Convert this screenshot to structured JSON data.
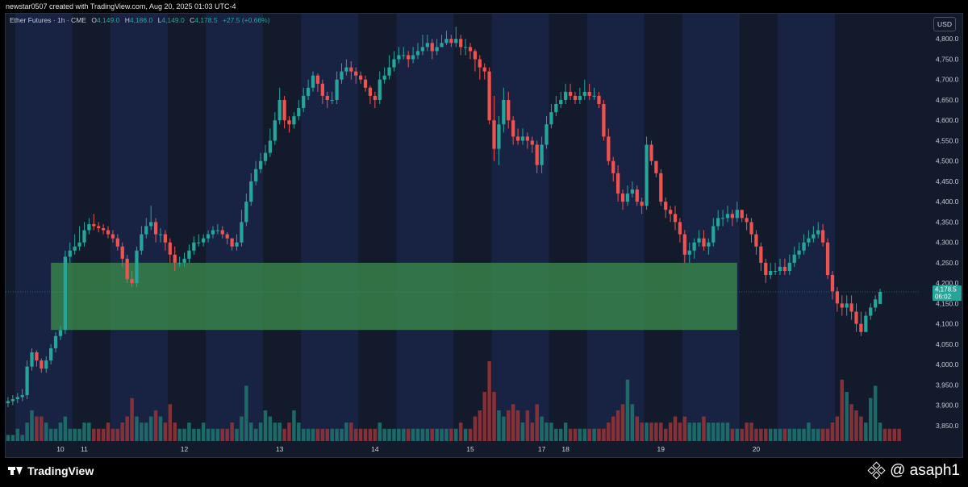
{
  "header": {
    "credit": "newstar0507 created with TradingView.com, Aug 20, 2025 01:03 UTC-4"
  },
  "legend": {
    "symbol": "Ether Futures · 1h · CME",
    "o_label": "O",
    "o": "4,149.0",
    "h_label": "H",
    "h": "4,186.0",
    "l_label": "L",
    "l": "4,149.0",
    "c_label": "C",
    "c": "4,178.5",
    "change": "+27.5 (+0.66%)"
  },
  "currency": "USD",
  "price_tag": {
    "value": "4,178.5",
    "countdown": "06:02"
  },
  "footer": {
    "brand": "TradingView",
    "handle": "@ asaph1"
  },
  "colors": {
    "up": "#26a69a",
    "down": "#ef5350",
    "zone": "#3b8a4a",
    "panel": "#121a2b",
    "session": "#1a2547"
  },
  "chart_data": {
    "type": "candlestick",
    "title": "",
    "ylim": [
      3820,
      4850
    ],
    "y_ticks": [
      3850,
      3900,
      3950,
      4000,
      4050,
      4100,
      4150,
      4200,
      4250,
      4300,
      4350,
      4400,
      4450,
      4500,
      4550,
      4600,
      4650,
      4700,
      4750,
      4800
    ],
    "y_tick_labels": [
      "3,850.0",
      "3,900.0",
      "3,950.0",
      "4,000.0",
      "4,050.0",
      "4,100.0",
      "4,150.0",
      "4,200.0",
      "4,250.0",
      "4,300.0",
      "4,350.0",
      "4,400.0",
      "4,450.0",
      "4,500.0",
      "4,550.0",
      "4,600.0",
      "4,650.0",
      "4,700.0",
      "4,750.0",
      "4,800.0"
    ],
    "x_labels": [
      {
        "label": "10",
        "bar": 11
      },
      {
        "label": "11",
        "bar": 16
      },
      {
        "label": "12",
        "bar": 37
      },
      {
        "label": "13",
        "bar": 57
      },
      {
        "label": "14",
        "bar": 77
      },
      {
        "label": "15",
        "bar": 97
      },
      {
        "label": "17",
        "bar": 112
      },
      {
        "label": "18",
        "bar": 117
      },
      {
        "label": "19",
        "bar": 137
      },
      {
        "label": "20",
        "bar": 157
      }
    ],
    "zone": {
      "low": 4085,
      "high": 4250,
      "start_bar": 9,
      "end_bar": 153
    },
    "last_price": 4178.5,
    "closes": [
      3910,
      3915,
      3920,
      3925,
      3995,
      4030,
      4010,
      3990,
      4010,
      4040,
      4070,
      4085,
      4265,
      4280,
      4290,
      4300,
      4330,
      4345,
      4340,
      4335,
      4330,
      4320,
      4310,
      4290,
      4260,
      4210,
      4200,
      4280,
      4320,
      4340,
      4350,
      4320,
      4320,
      4300,
      4270,
      4250,
      4250,
      4260,
      4280,
      4300,
      4300,
      4310,
      4320,
      4330,
      4330,
      4320,
      4310,
      4290,
      4300,
      4350,
      4400,
      4450,
      4480,
      4500,
      4520,
      4550,
      4600,
      4650,
      4600,
      4590,
      4610,
      4630,
      4660,
      4680,
      4710,
      4690,
      4660,
      4650,
      4650,
      4700,
      4720,
      4730,
      4720,
      4710,
      4700,
      4680,
      4660,
      4650,
      4700,
      4710,
      4730,
      4750,
      4760,
      4760,
      4750,
      4760,
      4770,
      4780,
      4790,
      4770,
      4780,
      4790,
      4800,
      4790,
      4800,
      4780,
      4780,
      4770,
      4750,
      4730,
      4720,
      4600,
      4530,
      4590,
      4650,
      4600,
      4560,
      4550,
      4560,
      4550,
      4540,
      4490,
      4540,
      4590,
      4620,
      4640,
      4650,
      4670,
      4660,
      4650,
      4660,
      4670,
      4660,
      4660,
      4640,
      4560,
      4500,
      4470,
      4420,
      4400,
      4420,
      4430,
      4400,
      4390,
      4540,
      4500,
      4470,
      4400,
      4380,
      4370,
      4350,
      4320,
      4270,
      4280,
      4300,
      4310,
      4290,
      4300,
      4340,
      4360,
      4360,
      4370,
      4360,
      4380,
      4360,
      4350,
      4320,
      4290,
      4250,
      4220,
      4230,
      4230,
      4240,
      4230,
      4250,
      4270,
      4280,
      4300,
      4310,
      4320,
      4330,
      4300,
      4220,
      4180,
      4150,
      4140,
      4150,
      4130,
      4100,
      4080,
      4120,
      4140,
      4160,
      4178.5
    ],
    "opens": [
      3905,
      3910,
      3915,
      3920,
      3925,
      3995,
      4030,
      4010,
      3990,
      4010,
      4040,
      4070,
      4085,
      4265,
      4280,
      4290,
      4300,
      4330,
      4345,
      4340,
      4335,
      4330,
      4320,
      4310,
      4290,
      4260,
      4210,
      4200,
      4280,
      4320,
      4340,
      4350,
      4320,
      4320,
      4300,
      4270,
      4250,
      4250,
      4260,
      4280,
      4300,
      4300,
      4310,
      4320,
      4330,
      4330,
      4320,
      4310,
      4290,
      4300,
      4350,
      4400,
      4450,
      4480,
      4500,
      4520,
      4550,
      4600,
      4650,
      4600,
      4590,
      4610,
      4630,
      4660,
      4680,
      4710,
      4690,
      4660,
      4650,
      4650,
      4700,
      4720,
      4730,
      4720,
      4710,
      4700,
      4680,
      4660,
      4650,
      4700,
      4710,
      4730,
      4750,
      4760,
      4760,
      4750,
      4760,
      4770,
      4780,
      4790,
      4770,
      4780,
      4790,
      4800,
      4790,
      4800,
      4780,
      4780,
      4770,
      4750,
      4730,
      4720,
      4600,
      4530,
      4590,
      4650,
      4600,
      4560,
      4550,
      4560,
      4550,
      4540,
      4490,
      4540,
      4590,
      4620,
      4640,
      4650,
      4670,
      4660,
      4650,
      4660,
      4670,
      4660,
      4660,
      4640,
      4560,
      4500,
      4470,
      4420,
      4400,
      4420,
      4430,
      4400,
      4390,
      4540,
      4500,
      4470,
      4400,
      4380,
      4370,
      4350,
      4320,
      4270,
      4280,
      4300,
      4310,
      4290,
      4300,
      4340,
      4360,
      4360,
      4370,
      4360,
      4380,
      4360,
      4350,
      4320,
      4290,
      4250,
      4220,
      4230,
      4230,
      4240,
      4230,
      4250,
      4270,
      4280,
      4300,
      4310,
      4320,
      4330,
      4300,
      4220,
      4180,
      4150,
      4140,
      4150,
      4130,
      4100,
      4080,
      4120,
      4140,
      4149
    ],
    "highs": [
      3920,
      3925,
      3930,
      3940,
      4010,
      4040,
      4035,
      4015,
      4020,
      4050,
      4080,
      4095,
      4280,
      4300,
      4320,
      4340,
      4350,
      4360,
      4370,
      4350,
      4345,
      4340,
      4330,
      4320,
      4300,
      4270,
      4230,
      4290,
      4340,
      4360,
      4390,
      4360,
      4335,
      4330,
      4310,
      4290,
      4265,
      4275,
      4295,
      4315,
      4320,
      4320,
      4330,
      4340,
      4345,
      4340,
      4325,
      4310,
      4320,
      4380,
      4420,
      4470,
      4500,
      4520,
      4540,
      4580,
      4620,
      4680,
      4660,
      4610,
      4620,
      4650,
      4680,
      4700,
      4720,
      4715,
      4700,
      4670,
      4670,
      4720,
      4740,
      4750,
      4745,
      4730,
      4720,
      4710,
      4685,
      4670,
      4720,
      4730,
      4760,
      4770,
      4780,
      4780,
      4770,
      4780,
      4790,
      4810,
      4810,
      4800,
      4800,
      4810,
      4820,
      4810,
      4830,
      4810,
      4800,
      4790,
      4775,
      4760,
      4740,
      4730,
      4660,
      4610,
      4680,
      4670,
      4610,
      4580,
      4580,
      4570,
      4560,
      4550,
      4560,
      4610,
      4640,
      4660,
      4670,
      4690,
      4690,
      4670,
      4680,
      4700,
      4690,
      4680,
      4670,
      4650,
      4580,
      4510,
      4490,
      4430,
      4440,
      4450,
      4440,
      4410,
      4560,
      4550,
      4500,
      4480,
      4410,
      4390,
      4390,
      4360,
      4330,
      4300,
      4310,
      4330,
      4330,
      4310,
      4360,
      4380,
      4380,
      4390,
      4380,
      4400,
      4380,
      4370,
      4360,
      4330,
      4300,
      4260,
      4250,
      4250,
      4260,
      4260,
      4270,
      4290,
      4300,
      4320,
      4330,
      4340,
      4350,
      4345,
      4310,
      4230,
      4190,
      4170,
      4170,
      4170,
      4150,
      4130,
      4130,
      4150,
      4170,
      4186
    ],
    "lows": [
      3895,
      3900,
      3905,
      3910,
      3915,
      3985,
      3995,
      3980,
      3980,
      4000,
      4030,
      4060,
      4075,
      4250,
      4270,
      4280,
      4290,
      4320,
      4330,
      4325,
      4320,
      4310,
      4300,
      4280,
      4240,
      4200,
      4190,
      4190,
      4270,
      4310,
      4330,
      4300,
      4300,
      4280,
      4250,
      4230,
      4240,
      4240,
      4250,
      4270,
      4290,
      4290,
      4300,
      4310,
      4320,
      4310,
      4295,
      4280,
      4280,
      4290,
      4340,
      4390,
      4440,
      4470,
      4490,
      4510,
      4540,
      4590,
      4580,
      4570,
      4580,
      4600,
      4620,
      4650,
      4670,
      4670,
      4640,
      4630,
      4640,
      4640,
      4690,
      4710,
      4700,
      4690,
      4690,
      4670,
      4640,
      4630,
      4640,
      4690,
      4700,
      4720,
      4740,
      4750,
      4730,
      4740,
      4750,
      4760,
      4770,
      4750,
      4760,
      4780,
      4785,
      4780,
      4780,
      4760,
      4760,
      4750,
      4720,
      4700,
      4700,
      4590,
      4500,
      4490,
      4570,
      4580,
      4540,
      4540,
      4540,
      4530,
      4520,
      4470,
      4470,
      4530,
      4580,
      4610,
      4630,
      4640,
      4650,
      4640,
      4640,
      4650,
      4650,
      4650,
      4630,
      4550,
      4490,
      4450,
      4400,
      4380,
      4390,
      4410,
      4390,
      4370,
      4380,
      4490,
      4460,
      4390,
      4360,
      4350,
      4330,
      4300,
      4250,
      4250,
      4260,
      4290,
      4280,
      4270,
      4290,
      4330,
      4340,
      4350,
      4340,
      4350,
      4350,
      4330,
      4300,
      4270,
      4230,
      4200,
      4210,
      4220,
      4220,
      4220,
      4220,
      4240,
      4260,
      4270,
      4290,
      4300,
      4310,
      4290,
      4210,
      4160,
      4130,
      4120,
      4120,
      4110,
      4080,
      4070,
      4080,
      4110,
      4130,
      4149
    ],
    "volumes": [
      1,
      1,
      2,
      1,
      3,
      5,
      4,
      4,
      3,
      2,
      2,
      3,
      4,
      2,
      2,
      2,
      3,
      3,
      2,
      2,
      2,
      3,
      2,
      2,
      3,
      4,
      7,
      4,
      3,
      3,
      4,
      5,
      4,
      3,
      6,
      3,
      2,
      2,
      3,
      2,
      2,
      3,
      2,
      2,
      2,
      2,
      2,
      3,
      2,
      4,
      9,
      3,
      2,
      3,
      5,
      4,
      3,
      3,
      2,
      3,
      5,
      3,
      2,
      2,
      2,
      2,
      2,
      2,
      2,
      2,
      2,
      3,
      3,
      2,
      2,
      2,
      2,
      2,
      3,
      2,
      2,
      2,
      2,
      2,
      2,
      2,
      2,
      2,
      2,
      2,
      2,
      2,
      2,
      2,
      2,
      3,
      2,
      2,
      4,
      5,
      8,
      13,
      8,
      5,
      4,
      5,
      6,
      5,
      3,
      5,
      3,
      6,
      4,
      3,
      3,
      2,
      2,
      3,
      2,
      2,
      2,
      2,
      2,
      2,
      2,
      2,
      3,
      4,
      5,
      6,
      10,
      6,
      4,
      3,
      3,
      3,
      3,
      3,
      2,
      3,
      4,
      3,
      4,
      3,
      3,
      3,
      4,
      3,
      3,
      3,
      3,
      3,
      2,
      2,
      2,
      3,
      3,
      2,
      2,
      2,
      2,
      2,
      2,
      2,
      2,
      2,
      2,
      2,
      3,
      2,
      2,
      2,
      2,
      3,
      4,
      10,
      8,
      6,
      5,
      4,
      3,
      7,
      9,
      3,
      2,
      2,
      2,
      2
    ],
    "volume_max": 13
  }
}
